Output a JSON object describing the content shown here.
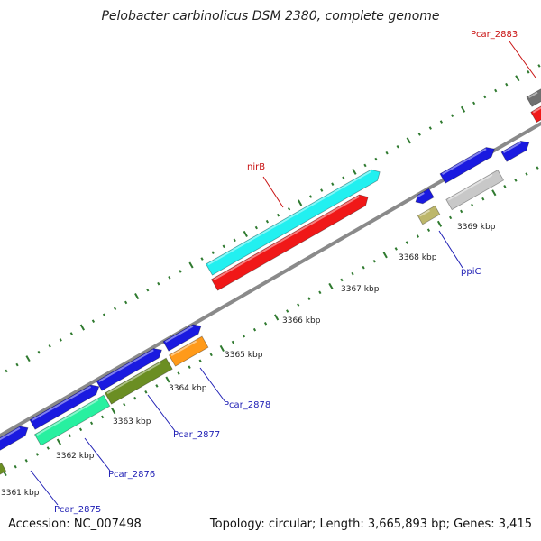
{
  "title": "Pelobacter carbinolicus DSM 2380, complete genome",
  "footer": {
    "accession": "Accession: NC_007498",
    "summary": "Topology: circular; Length: 3,665,893 bp; Genes: 3,415"
  },
  "colors": {
    "backbone": "#8a8a8a",
    "tick": "#2f7a2f",
    "label_blue": "#1f1fb5",
    "label_red": "#c81010",
    "gene_blue": "#1a1ae0",
    "gene_cyan": "#22f0f0",
    "gene_red": "#f01818",
    "gene_gray": "#c8c8c8",
    "gene_darkgray": "#707070",
    "gene_olive": "#6b8e23",
    "gene_orange": "#ff9a1a",
    "gene_mint": "#28f0a0",
    "gene_khaki": "#bdb76b"
  },
  "scale_labels": [
    "3361 kbp",
    "3362 kbp",
    "3363 kbp",
    "3364 kbp",
    "3365 kbp",
    "3366 kbp",
    "3367 kbp",
    "3368 kbp",
    "3369 kbp"
  ],
  "gene_labels": {
    "pcar_2875": "Pcar_2875",
    "pcar_2876": "Pcar_2876",
    "pcar_2877": "Pcar_2877",
    "pcar_2878": "Pcar_2878",
    "ppic": "ppiC",
    "nirb": "nirB",
    "pcar_2883": "Pcar_2883"
  }
}
